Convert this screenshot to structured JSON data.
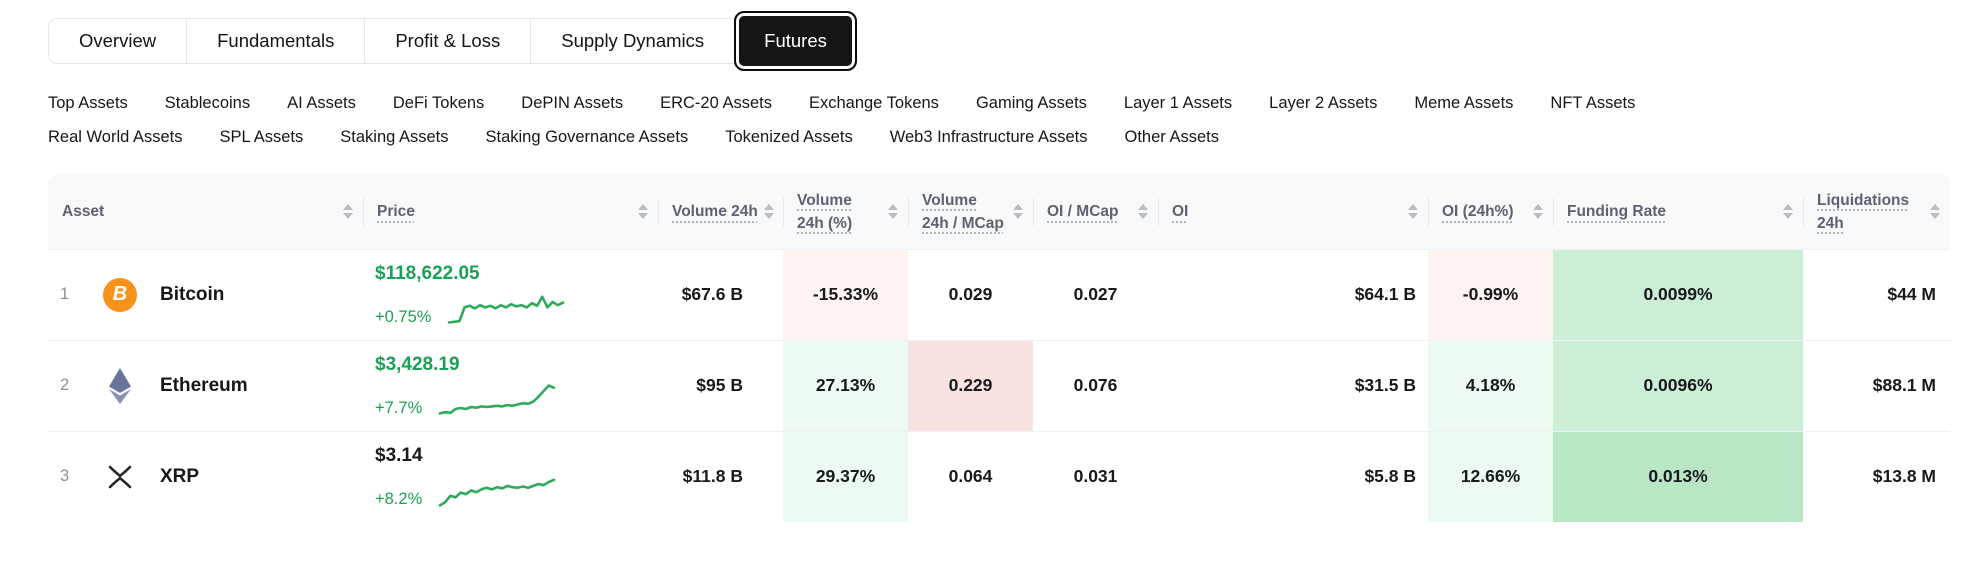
{
  "tabs": [
    {
      "label": "Overview",
      "active": false
    },
    {
      "label": "Fundamentals",
      "active": false
    },
    {
      "label": "Profit & Loss",
      "active": false
    },
    {
      "label": "Supply Dynamics",
      "active": false
    },
    {
      "label": "Futures",
      "active": true
    }
  ],
  "filters": {
    "row1": [
      {
        "label": "Top Assets"
      },
      {
        "label": "Stablecoins"
      },
      {
        "label": "AI Assets"
      },
      {
        "label": "DeFi Tokens"
      },
      {
        "label": "DePIN Assets"
      },
      {
        "label": "ERC-20 Assets"
      },
      {
        "label": "Exchange Tokens"
      },
      {
        "label": "Gaming Assets"
      },
      {
        "label": "Layer 1 Assets"
      },
      {
        "label": "Layer 2 Assets"
      },
      {
        "label": "Meme Assets"
      },
      {
        "label": "NFT Assets"
      }
    ],
    "row2": [
      {
        "label": "Real World Assets"
      },
      {
        "label": "SPL Assets"
      },
      {
        "label": "Staking Assets"
      },
      {
        "label": "Staking Governance Assets"
      },
      {
        "label": "Tokenized Assets"
      },
      {
        "label": "Web3 Infrastructure Assets"
      },
      {
        "label": "Other Assets"
      }
    ]
  },
  "icons": {
    "bitcoin_glyph": "B"
  },
  "table": {
    "columns": [
      {
        "label": "Asset"
      },
      {
        "label": "Price"
      },
      {
        "label": "Volume 24h"
      },
      {
        "label": "Volume 24h (%)"
      },
      {
        "label": "Volume 24h / MCap"
      },
      {
        "label": "OI / MCap"
      },
      {
        "label": "OI"
      },
      {
        "label": "OI (24h%)"
      },
      {
        "label": "Funding Rate"
      },
      {
        "label": "Liquidations 24h"
      }
    ],
    "rows": [
      {
        "rank": "1",
        "name": "Bitcoin",
        "price": "$118,622.05",
        "price_tone": "up",
        "change": "+0.75%",
        "spark": [
          0.08,
          0.1,
          0.12,
          0.55,
          0.6,
          0.52,
          0.62,
          0.55,
          0.6,
          0.52,
          0.62,
          0.55,
          0.65,
          0.58,
          0.62,
          0.55,
          0.68,
          0.6,
          0.88,
          0.55,
          0.72,
          0.62,
          0.7
        ],
        "volume_24h": "$67.6 B",
        "volume_24h_pct": "-15.33%",
        "volume_24h_pct_tone": "red-1",
        "volume_24h_mcap": "0.029",
        "volume_24h_mcap_tone": "",
        "oi_mcap": "0.027",
        "oi": "$64.1 B",
        "oi_24h_pct": "-0.99%",
        "oi_24h_pct_tone": "red-1",
        "funding_rate": "0.0099%",
        "funding_rate_tone": "green-3",
        "liquidations_24h": "$44 M"
      },
      {
        "rank": "2",
        "name": "Ethereum",
        "price": "$3,428.19",
        "price_tone": "up",
        "change": "+7.7%",
        "spark": [
          0.08,
          0.12,
          0.1,
          0.22,
          0.25,
          0.22,
          0.28,
          0.26,
          0.3,
          0.28,
          0.3,
          0.32,
          0.3,
          0.34,
          0.32,
          0.36,
          0.4,
          0.38,
          0.45,
          0.6,
          0.78,
          0.95,
          0.88
        ],
        "volume_24h": "$95 B",
        "volume_24h_pct": "27.13%",
        "volume_24h_pct_tone": "green-1",
        "volume_24h_mcap": "0.229",
        "volume_24h_mcap_tone": "red-2",
        "oi_mcap": "0.076",
        "oi": "$31.5 B",
        "oi_24h_pct": "4.18%",
        "oi_24h_pct_tone": "green-1",
        "funding_rate": "0.0096%",
        "funding_rate_tone": "green-3",
        "liquidations_24h": "$88.1 M"
      },
      {
        "rank": "3",
        "name": "XRP",
        "price": "$3.14",
        "price_tone": "dark",
        "change": "+8.2%",
        "spark": [
          0.05,
          0.15,
          0.35,
          0.3,
          0.45,
          0.4,
          0.52,
          0.46,
          0.55,
          0.6,
          0.55,
          0.62,
          0.58,
          0.66,
          0.62,
          0.6,
          0.64,
          0.6,
          0.66,
          0.72,
          0.68,
          0.78,
          0.85
        ],
        "volume_24h": "$11.8 B",
        "volume_24h_pct": "29.37%",
        "volume_24h_pct_tone": "green-1",
        "volume_24h_mcap": "0.064",
        "volume_24h_mcap_tone": "",
        "oi_mcap": "0.031",
        "oi": "$5.8 B",
        "oi_24h_pct": "12.66%",
        "oi_24h_pct_tone": "green-1",
        "funding_rate": "0.013%",
        "funding_rate_tone": "green-4",
        "liquidations_24h": "$13.8 M"
      }
    ]
  },
  "colors": {
    "accent_green_text": "#1aa057",
    "spark_green": "#2fa95c",
    "tone_red_light": "#fdf4f1",
    "tone_red_medium": "#f8e3e0",
    "tone_green_light": "#edfaf2",
    "tone_green_medium": "#cdeed6",
    "tone_green_strong": "#b9e7c6",
    "bitcoin_orange": "#f7931a",
    "active_tab_bg": "#151515",
    "header_bg": "#f8f9fb"
  }
}
